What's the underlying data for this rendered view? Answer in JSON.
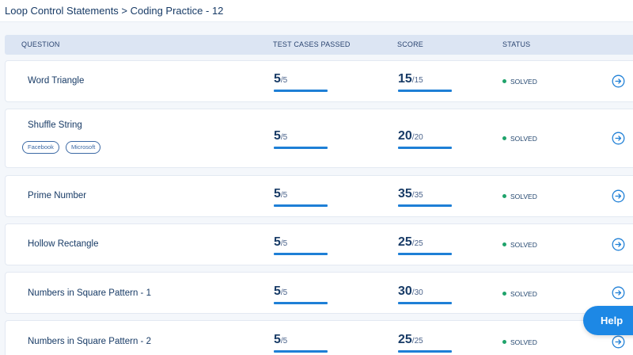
{
  "breadcrumb": "Loop Control Statements > Coding Practice - 12",
  "table": {
    "headers": {
      "question": "QUESTION",
      "test_cases": "TEST CASES PASSED",
      "score": "SCORE",
      "status": "STATUS"
    },
    "rows": [
      {
        "title": "Word Triangle",
        "tests_passed": "5",
        "tests_total": "/5",
        "score": "15",
        "score_total": "/15",
        "status": "SOLVED",
        "tags": []
      },
      {
        "title": "Shuffle String",
        "tests_passed": "5",
        "tests_total": "/5",
        "score": "20",
        "score_total": "/20",
        "status": "SOLVED",
        "tags": [
          "Facebook",
          "Microsoft"
        ]
      },
      {
        "title": "Prime Number",
        "tests_passed": "5",
        "tests_total": "/5",
        "score": "35",
        "score_total": "/35",
        "status": "SOLVED",
        "tags": []
      },
      {
        "title": "Hollow Rectangle",
        "tests_passed": "5",
        "tests_total": "/5",
        "score": "25",
        "score_total": "/25",
        "status": "SOLVED",
        "tags": []
      },
      {
        "title": "Numbers in Square Pattern - 1",
        "tests_passed": "5",
        "tests_total": "/5",
        "score": "30",
        "score_total": "/30",
        "status": "SOLVED",
        "tags": []
      },
      {
        "title": "Numbers in Square Pattern - 2",
        "tests_passed": "5",
        "tests_total": "/5",
        "score": "25",
        "score_total": "/25",
        "status": "SOLVED",
        "tags": []
      }
    ]
  },
  "help_label": "Help",
  "colors": {
    "accent": "#1e7fd6",
    "solved": "#1fa36b",
    "header_bg": "#dce5f3",
    "help_bg": "#1d88e5"
  },
  "icons": {
    "row_action": "arrow-right-circle-icon",
    "status": "status-dot-icon"
  }
}
